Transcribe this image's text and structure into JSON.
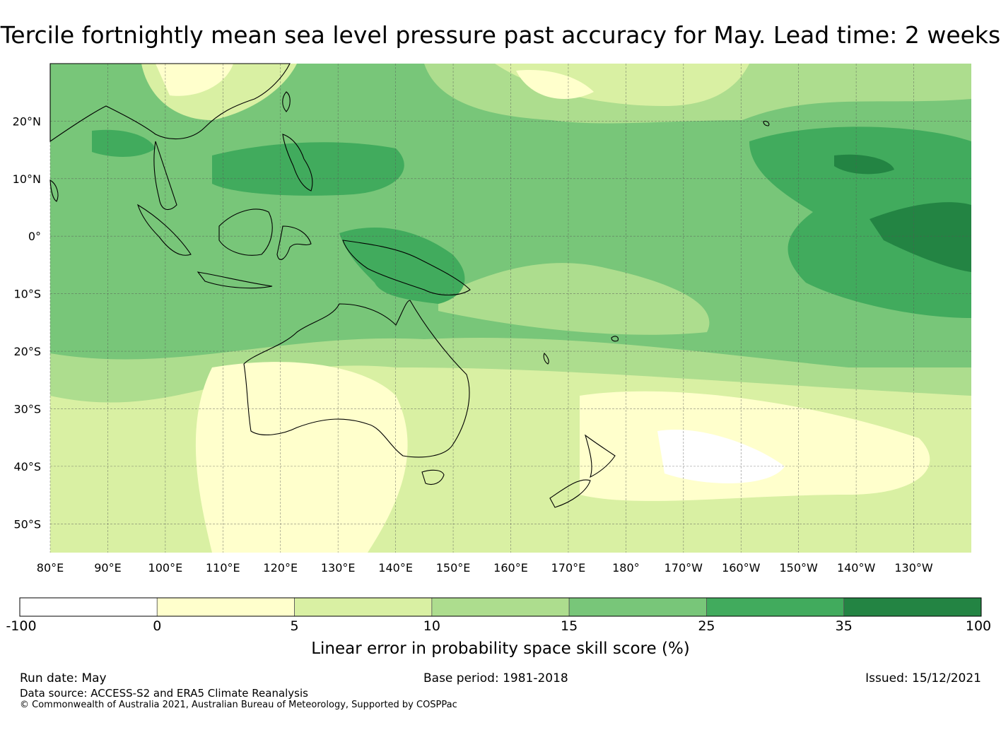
{
  "title": "Tercile fortnightly mean sea level pressure past accuracy for May. Lead time: 2 weeks",
  "map": {
    "lon_labels": [
      "80°E",
      "90°E",
      "100°E",
      "110°E",
      "120°E",
      "130°E",
      "140°E",
      "150°E",
      "160°E",
      "170°E",
      "180°",
      "170°W",
      "160°W",
      "150°W",
      "140°W",
      "130°W"
    ],
    "lat_labels": [
      "20°N",
      "10°N",
      "0°",
      "10°S",
      "20°S",
      "30°S",
      "40°S",
      "50°S"
    ],
    "lon_range": [
      80,
      240
    ],
    "lat_range": [
      -55,
      30
    ],
    "grid": true
  },
  "colorbar": {
    "labels": [
      "-100",
      "0",
      "5",
      "10",
      "15",
      "25",
      "35",
      "100"
    ],
    "colors": [
      "#ffffff",
      "#ffffcc",
      "#d9f0a3",
      "#addd8e",
      "#78c679",
      "#41ab5d",
      "#238443"
    ],
    "title": "Linear error in probability space skill score (%)"
  },
  "footer": {
    "run_date": "Run date: May",
    "base_period": "Base period: 1981-2018",
    "issued": "Issued: 15/12/2021",
    "data_source": "Data source: ACCESS-S2 and ERA5 Climate Reanalysis",
    "copyright": "© Commonwealth of Australia 2021, Australian Bureau of Meteorology, Supported by COSPPac"
  }
}
